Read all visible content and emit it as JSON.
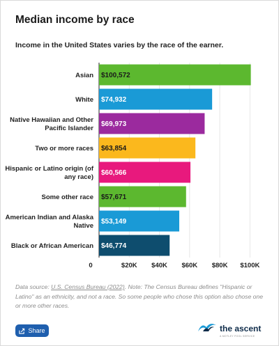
{
  "header": {
    "title": "Median income by race",
    "subtitle": "Income in the United States varies by the race of the earner."
  },
  "footer": {
    "note_prefix": "Data source: ",
    "source_link": "U.S. Census Bureau (2022)",
    "note_rest": ". Note: The Census Bureau defines \"Hispanic or Latino\" as an ethnicity, and not a race. So some people who chose this option also chose one or more other races.",
    "share_label": "Share",
    "brand_name": "the ascent",
    "brand_tag": "A MOTLEY FOOL SERVICE"
  },
  "chart_data": {
    "type": "bar",
    "orientation": "horizontal",
    "categories": [
      "Asian",
      "White",
      "Native Hawaiian and Other Pacific Islander",
      "Two or more races",
      "Hispanic or Latino origin (of any race)",
      "Some other race",
      "American Indian and Alaska Native",
      "Black or African American"
    ],
    "category_lines": [
      [
        "Asian"
      ],
      [
        "White"
      ],
      [
        "Native Hawaiian and Other",
        "Pacific Islander"
      ],
      [
        "Two or more races"
      ],
      [
        "Hispanic or Latino origin (of",
        "any race)"
      ],
      [
        "Some other race"
      ],
      [
        "American Indian and Alaska",
        "Native"
      ],
      [
        "Black or African American"
      ]
    ],
    "values": [
      100572,
      74932,
      69973,
      63854,
      60566,
      57671,
      53149,
      46774
    ],
    "value_labels": [
      "$100,572",
      "$74,932",
      "$69,973",
      "$63,854",
      "$60,566",
      "$57,671",
      "$53,149",
      "$46,774"
    ],
    "colors": [
      "#5cb82f",
      "#1a9ad6",
      "#9b2a9e",
      "#fbb81d",
      "#e8197d",
      "#5cb82f",
      "#1a9ad6",
      "#0e4d6e"
    ],
    "xlim": [
      0,
      110000
    ],
    "xticks": [
      0,
      20000,
      40000,
      60000,
      80000,
      100000
    ],
    "xtick_labels": [
      "0",
      "$20K",
      "$40K",
      "$60K",
      "$80K",
      "$100K"
    ],
    "grid": true
  }
}
